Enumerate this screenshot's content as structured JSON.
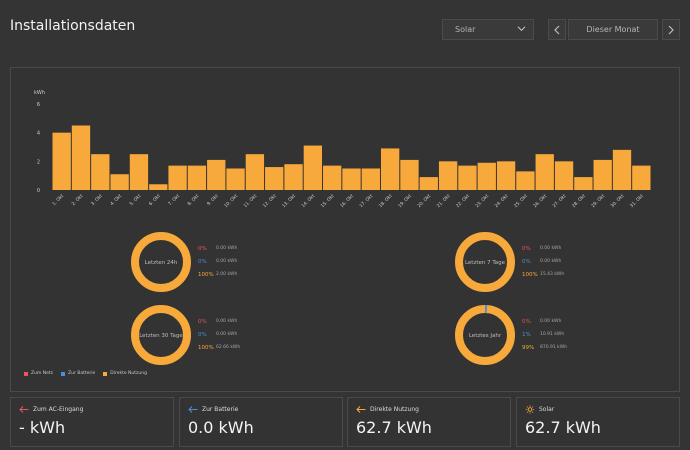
{
  "header": {
    "title": "Installationsdaten"
  },
  "controls": {
    "source_select": "Solar",
    "period": "Dieser Monat"
  },
  "colors": {
    "bar": "#f7a93b",
    "netz": "#e8545f",
    "batterie": "#4a8fd6",
    "direkt": "#f7a93b"
  },
  "chart_data": {
    "type": "bar",
    "ylabel": "kWh",
    "ylim": [
      0,
      6
    ],
    "yticks": [
      0,
      2,
      4,
      6
    ],
    "grid": false,
    "categories": [
      "1. Okt",
      "2. Okt",
      "3. Okt",
      "4. Okt",
      "5. Okt",
      "6. Okt",
      "7. Okt",
      "8. Okt",
      "9. Okt",
      "10. Okt",
      "11. Okt",
      "12. Okt",
      "13. Okt",
      "14. Okt",
      "15. Okt",
      "16. Okt",
      "17. Okt",
      "18. Okt",
      "19. Okt",
      "20. Okt",
      "21. Okt",
      "22. Okt",
      "23. Okt",
      "24. Okt",
      "25. Okt",
      "26. Okt",
      "27. Okt",
      "28. Okt",
      "29. Okt",
      "30. Okt",
      "31. Okt"
    ],
    "values": [
      4.0,
      4.5,
      2.5,
      1.1,
      2.5,
      0.4,
      1.7,
      1.7,
      2.1,
      1.5,
      2.5,
      1.6,
      1.8,
      3.1,
      1.7,
      1.5,
      1.5,
      2.9,
      2.1,
      0.9,
      2.0,
      1.7,
      1.9,
      2.0,
      1.3,
      2.5,
      2.0,
      0.9,
      2.1,
      2.8,
      1.7
    ]
  },
  "donuts": [
    {
      "label": "Letzten 24h",
      "rows": [
        {
          "pct": "0%",
          "val": "0.00 kWh",
          "kind": "netz"
        },
        {
          "pct": "0%",
          "val": "0.00 kWh",
          "kind": "batterie"
        },
        {
          "pct": "100%",
          "val": "2.00 kWh",
          "kind": "direkt"
        }
      ],
      "share_battery": 0
    },
    {
      "label": "Letzten 7 Tage",
      "rows": [
        {
          "pct": "0%",
          "val": "0.00 kWh",
          "kind": "netz"
        },
        {
          "pct": "0%",
          "val": "0.00 kWh",
          "kind": "batterie"
        },
        {
          "pct": "100%",
          "val": "15.43 kWh",
          "kind": "direkt"
        }
      ],
      "share_battery": 0
    },
    {
      "label": "Letzten 30 Tage",
      "rows": [
        {
          "pct": "0%",
          "val": "0.00 kWh",
          "kind": "netz"
        },
        {
          "pct": "0%",
          "val": "0.00 kWh",
          "kind": "batterie"
        },
        {
          "pct": "100%",
          "val": "62.66 kWh",
          "kind": "direkt"
        }
      ],
      "share_battery": 0
    },
    {
      "label": "Letztes Jahr",
      "rows": [
        {
          "pct": "0%",
          "val": "0.00 kWh",
          "kind": "netz"
        },
        {
          "pct": "1%",
          "val": "10.91 kWh",
          "kind": "batterie"
        },
        {
          "pct": "99%",
          "val": "870.91 kWh",
          "kind": "direkt"
        }
      ],
      "share_battery": 0.012
    }
  ],
  "legend": {
    "netz": "Zum Netz",
    "batterie": "Zur Batterie",
    "direkt": "Direkte Nutzung"
  },
  "stats": [
    {
      "label": "Zum AC-Eingang",
      "value": "- kWh",
      "icon": "arrow-left-icon",
      "color": "#e8545f"
    },
    {
      "label": "Zur Batterie",
      "value": "0.0 kWh",
      "icon": "arrow-left-icon",
      "color": "#4a8fd6"
    },
    {
      "label": "Direkte Nutzung",
      "value": "62.7 kWh",
      "icon": "arrow-left-icon",
      "color": "#f7a93b"
    },
    {
      "label": "Solar",
      "value": "62.7 kWh",
      "icon": "sun-icon",
      "color": "#f7a93b"
    }
  ]
}
